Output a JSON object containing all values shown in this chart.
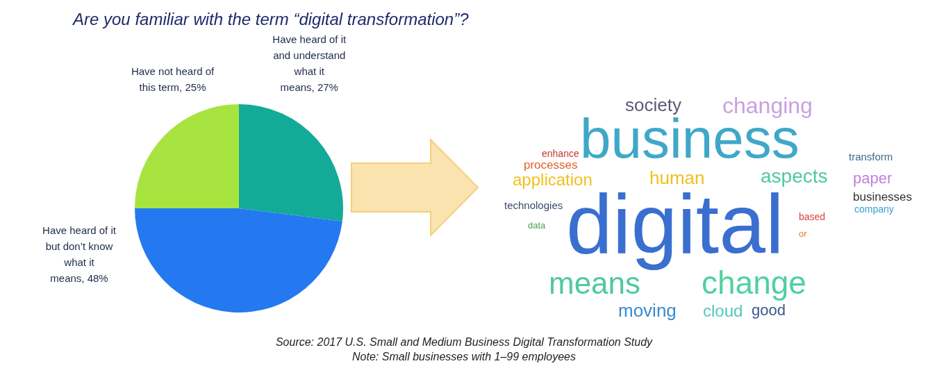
{
  "chart_data": [
    {
      "type": "pie",
      "title": "Are you familiar with the term “digital transformation”?",
      "categories": [
        "Have heard of it and understand what it means",
        "Have heard of it but don’t know what it means",
        "Have not heard of this term"
      ],
      "values": [
        27,
        48,
        25
      ],
      "value_labels": [
        "27%",
        "48%",
        "25%"
      ],
      "colors": [
        "#13ab98",
        "#2479f0",
        "#a8e43f"
      ],
      "legend": false,
      "annotations": [
        "Source: 2017 U.S. Small and Medium Business Digital Transformation Study",
        "Note: Small businesses with 1–99 employees"
      ]
    },
    {
      "type": "other",
      "annotations": [
        "society",
        "changing",
        "business",
        "enhance",
        "processes",
        "transform",
        "application",
        "human",
        "aspects",
        "paper",
        "businesses",
        "technologies",
        "company",
        "digital",
        "data",
        "based",
        "or",
        "means",
        "change",
        "moving",
        "cloud",
        "good"
      ]
    }
  ]
}
